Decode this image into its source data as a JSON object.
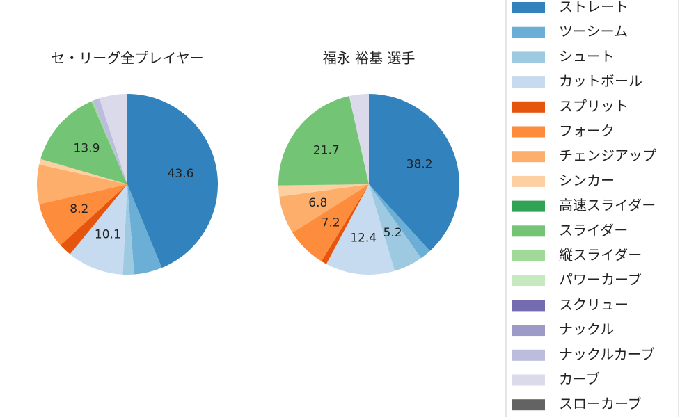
{
  "chart_data": [
    {
      "type": "pie",
      "title": "セ・リーグ全プレイヤー",
      "categories": [
        "ストレート",
        "ツーシーム",
        "シュート",
        "カットボール",
        "スプリット",
        "フォーク",
        "チェンジアップ",
        "シンカー",
        "高速スライダー",
        "スライダー",
        "縦スライダー",
        "パワーカーブ",
        "スクリュー",
        "ナックル",
        "ナックルカーブ",
        "カーブ",
        "スローカーブ"
      ],
      "colors": [
        "#3182bd",
        "#6baed6",
        "#9ecae1",
        "#c6dbef",
        "#e6550d",
        "#fd8d3c",
        "#fdae6b",
        "#fdd0a2",
        "#31a354",
        "#74c476",
        "#a1d99b",
        "#c7e9c0",
        "#756bb1",
        "#9e9ac8",
        "#bcbddc",
        "#dadaeb",
        "#636363"
      ],
      "values": [
        43.6,
        5,
        2,
        10.1,
        2.3,
        8.2,
        7,
        1,
        0,
        13.9,
        0.3,
        0,
        0,
        0,
        1.2,
        5,
        0
      ],
      "value_labels": [
        "43.6",
        null,
        null,
        "10.1",
        null,
        "8.2",
        null,
        null,
        null,
        "13.9",
        null,
        null,
        null,
        null,
        null,
        null,
        null
      ]
    },
    {
      "type": "pie",
      "title": "福永 裕基  選手",
      "categories": [
        "ストレート",
        "ツーシーム",
        "シュート",
        "カットボール",
        "スプリット",
        "フォーク",
        "チェンジアップ",
        "シンカー",
        "高速スライダー",
        "スライダー",
        "縦スライダー",
        "パワーカーブ",
        "スクリュー",
        "ナックル",
        "ナックルカーブ",
        "カーブ",
        "スローカーブ"
      ],
      "colors": [
        "#3182bd",
        "#6baed6",
        "#9ecae1",
        "#c6dbef",
        "#e6550d",
        "#fd8d3c",
        "#fdae6b",
        "#fdd0a2",
        "#31a354",
        "#74c476",
        "#a1d99b",
        "#c7e9c0",
        "#756bb1",
        "#9e9ac8",
        "#bcbddc",
        "#dadaeb",
        "#636363"
      ],
      "values": [
        38.2,
        2,
        5.2,
        12.4,
        1,
        7.2,
        6.8,
        2,
        0,
        21.7,
        0,
        0,
        0,
        0,
        0,
        3.5,
        0
      ],
      "value_labels": [
        "38.2",
        null,
        "5.2",
        "12.4",
        null,
        "7.2",
        "6.8",
        null,
        null,
        "21.7",
        null,
        null,
        null,
        null,
        null,
        null,
        null
      ]
    }
  ]
}
